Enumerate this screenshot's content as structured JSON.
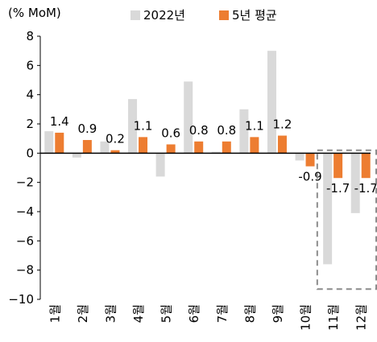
{
  "chart_data": {
    "type": "bar",
    "title": "",
    "unit_label": "(% MoM)",
    "xlabel": "",
    "ylabel": "",
    "ylim": [
      -10,
      8
    ],
    "yticks": [
      8,
      6,
      4,
      2,
      0,
      -2,
      -4,
      -6,
      -8,
      -10
    ],
    "categories": [
      "1월",
      "2월",
      "3월",
      "4월",
      "5월",
      "6월",
      "7월",
      "8월",
      "9월",
      "10월",
      "11월",
      "12월"
    ],
    "series": [
      {
        "name": "2022년",
        "color": "#d9d9d9",
        "values": [
          1.5,
          -0.3,
          0.8,
          3.7,
          -1.6,
          4.9,
          0.1,
          3.0,
          7.0,
          -0.5,
          -7.6,
          -4.1
        ]
      },
      {
        "name": "5년 평균",
        "color": "#ed7d31",
        "values": [
          1.4,
          0.9,
          0.2,
          1.1,
          0.6,
          0.8,
          0.8,
          1.1,
          1.2,
          -0.9,
          -1.7,
          -1.7
        ],
        "data_labels": [
          "1.4",
          "0.9",
          "0.2",
          "1.1",
          "0.6",
          "0.8",
          "0.8",
          "1.1",
          "1.2",
          "-0.9",
          "-1.7",
          "-1.7"
        ]
      }
    ],
    "legend_position": "top",
    "grid": false,
    "highlight": {
      "categories": [
        "11월",
        "12월"
      ],
      "style": "dashed-box",
      "color": "#8c8c8c"
    }
  }
}
